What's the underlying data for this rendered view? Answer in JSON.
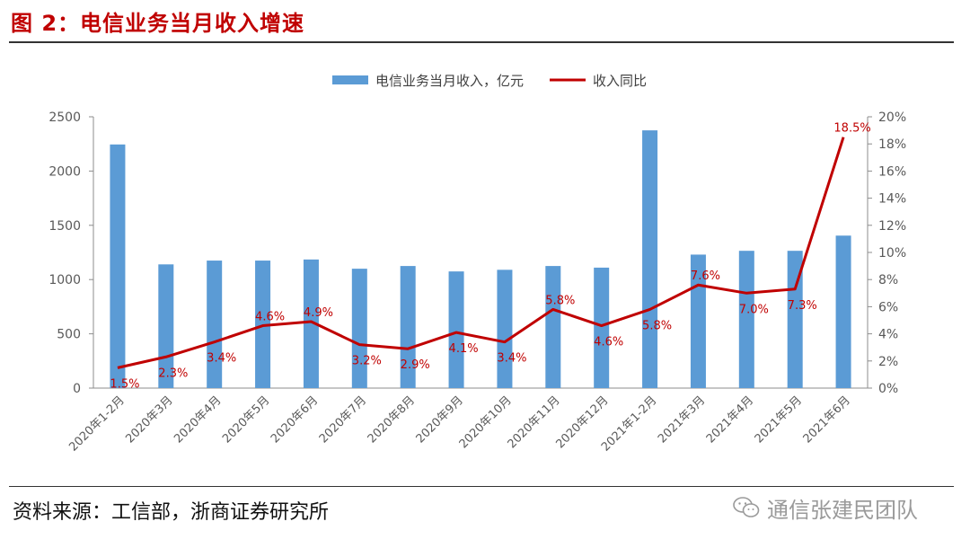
{
  "figure": {
    "title": "图 2：电信业务当月收入增速",
    "source": "资料来源：工信部，浙商证券研究所",
    "watermark": "通信张建民团队"
  },
  "colors": {
    "bar": "#5b9bd5",
    "line": "#c00000",
    "axis": "#595959",
    "grid": "#d9d9d9"
  },
  "chart_data": {
    "type": "bar",
    "title": "",
    "categories": [
      "2020年1-2月",
      "2020年3月",
      "2020年4月",
      "2020年5月",
      "2020年6月",
      "2020年7月",
      "2020年8月",
      "2020年9月",
      "2020年10月",
      "2020年11月",
      "2020年12月",
      "2021年1-2月",
      "2021年3月",
      "2021年4月",
      "2021年5月",
      "2021年6月"
    ],
    "series": [
      {
        "name": "电信业务当月收入，亿元",
        "type": "bar",
        "axis": "left",
        "values": [
          2245,
          1140,
          1175,
          1175,
          1185,
          1100,
          1125,
          1075,
          1090,
          1125,
          1110,
          2375,
          1230,
          1265,
          1265,
          1405
        ]
      },
      {
        "name": "收入同比",
        "type": "line",
        "axis": "right",
        "values": [
          1.5,
          2.3,
          3.4,
          4.6,
          4.9,
          3.2,
          2.9,
          4.1,
          3.4,
          5.8,
          4.6,
          5.8,
          7.6,
          7.0,
          7.3,
          18.5
        ],
        "labels": [
          "1.5%",
          "2.3%",
          "3.4%",
          "4.6%",
          "4.9%",
          "3.2%",
          "2.9%",
          "4.1%",
          "3.4%",
          "5.8%",
          "4.6%",
          "5.8%",
          "7.6%",
          "7.0%",
          "7.3%",
          "18.5%"
        ]
      }
    ],
    "y_left": {
      "ylim": [
        0,
        2500
      ],
      "ticks": [
        "0",
        "500",
        "1000",
        "1500",
        "2000",
        "2500"
      ]
    },
    "y_right": {
      "ylim": [
        0,
        20
      ],
      "ticks": [
        "0%",
        "2%",
        "4%",
        "6%",
        "8%",
        "10%",
        "12%",
        "14%",
        "16%",
        "18%",
        "20%"
      ]
    },
    "legend": "top-center",
    "grid": false
  }
}
